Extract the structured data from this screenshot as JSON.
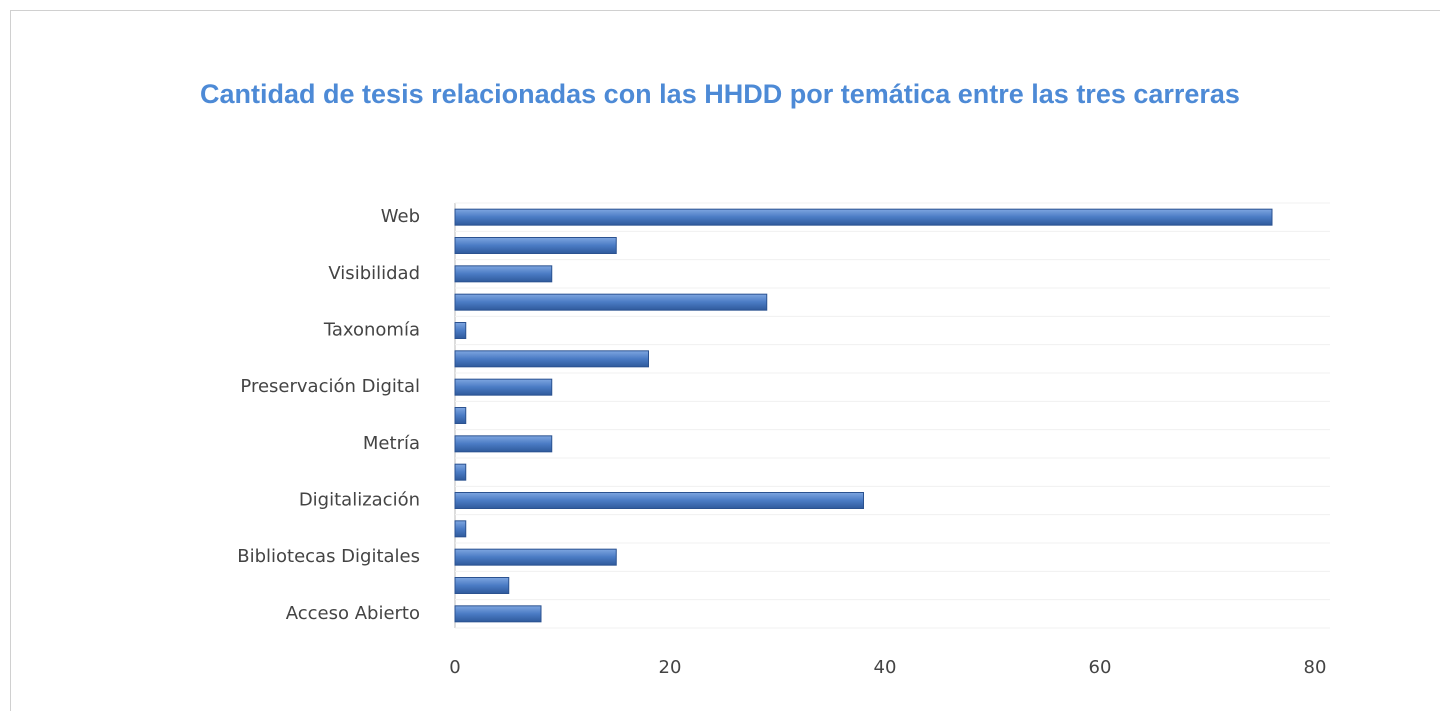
{
  "chart_data": {
    "type": "bar",
    "orientation": "horizontal",
    "title": "Cantidad de tesis relacionadas con las HHDD por temática entre las tres carreras",
    "categories": [
      "Web",
      null,
      "Visibilidad",
      null,
      "Taxonomía",
      null,
      "Preservación Digital",
      null,
      "Metría",
      null,
      "Digitalización",
      null,
      "Bibliotecas Digitales",
      null,
      "Acceso Abierto"
    ],
    "values": [
      76,
      15,
      9,
      29,
      1,
      18,
      9,
      1,
      9,
      1,
      38,
      1,
      15,
      5,
      8
    ],
    "color": "#4a7bc4",
    "xlim": [
      0,
      80
    ],
    "xticks": [
      0,
      20,
      40,
      60,
      80
    ]
  }
}
